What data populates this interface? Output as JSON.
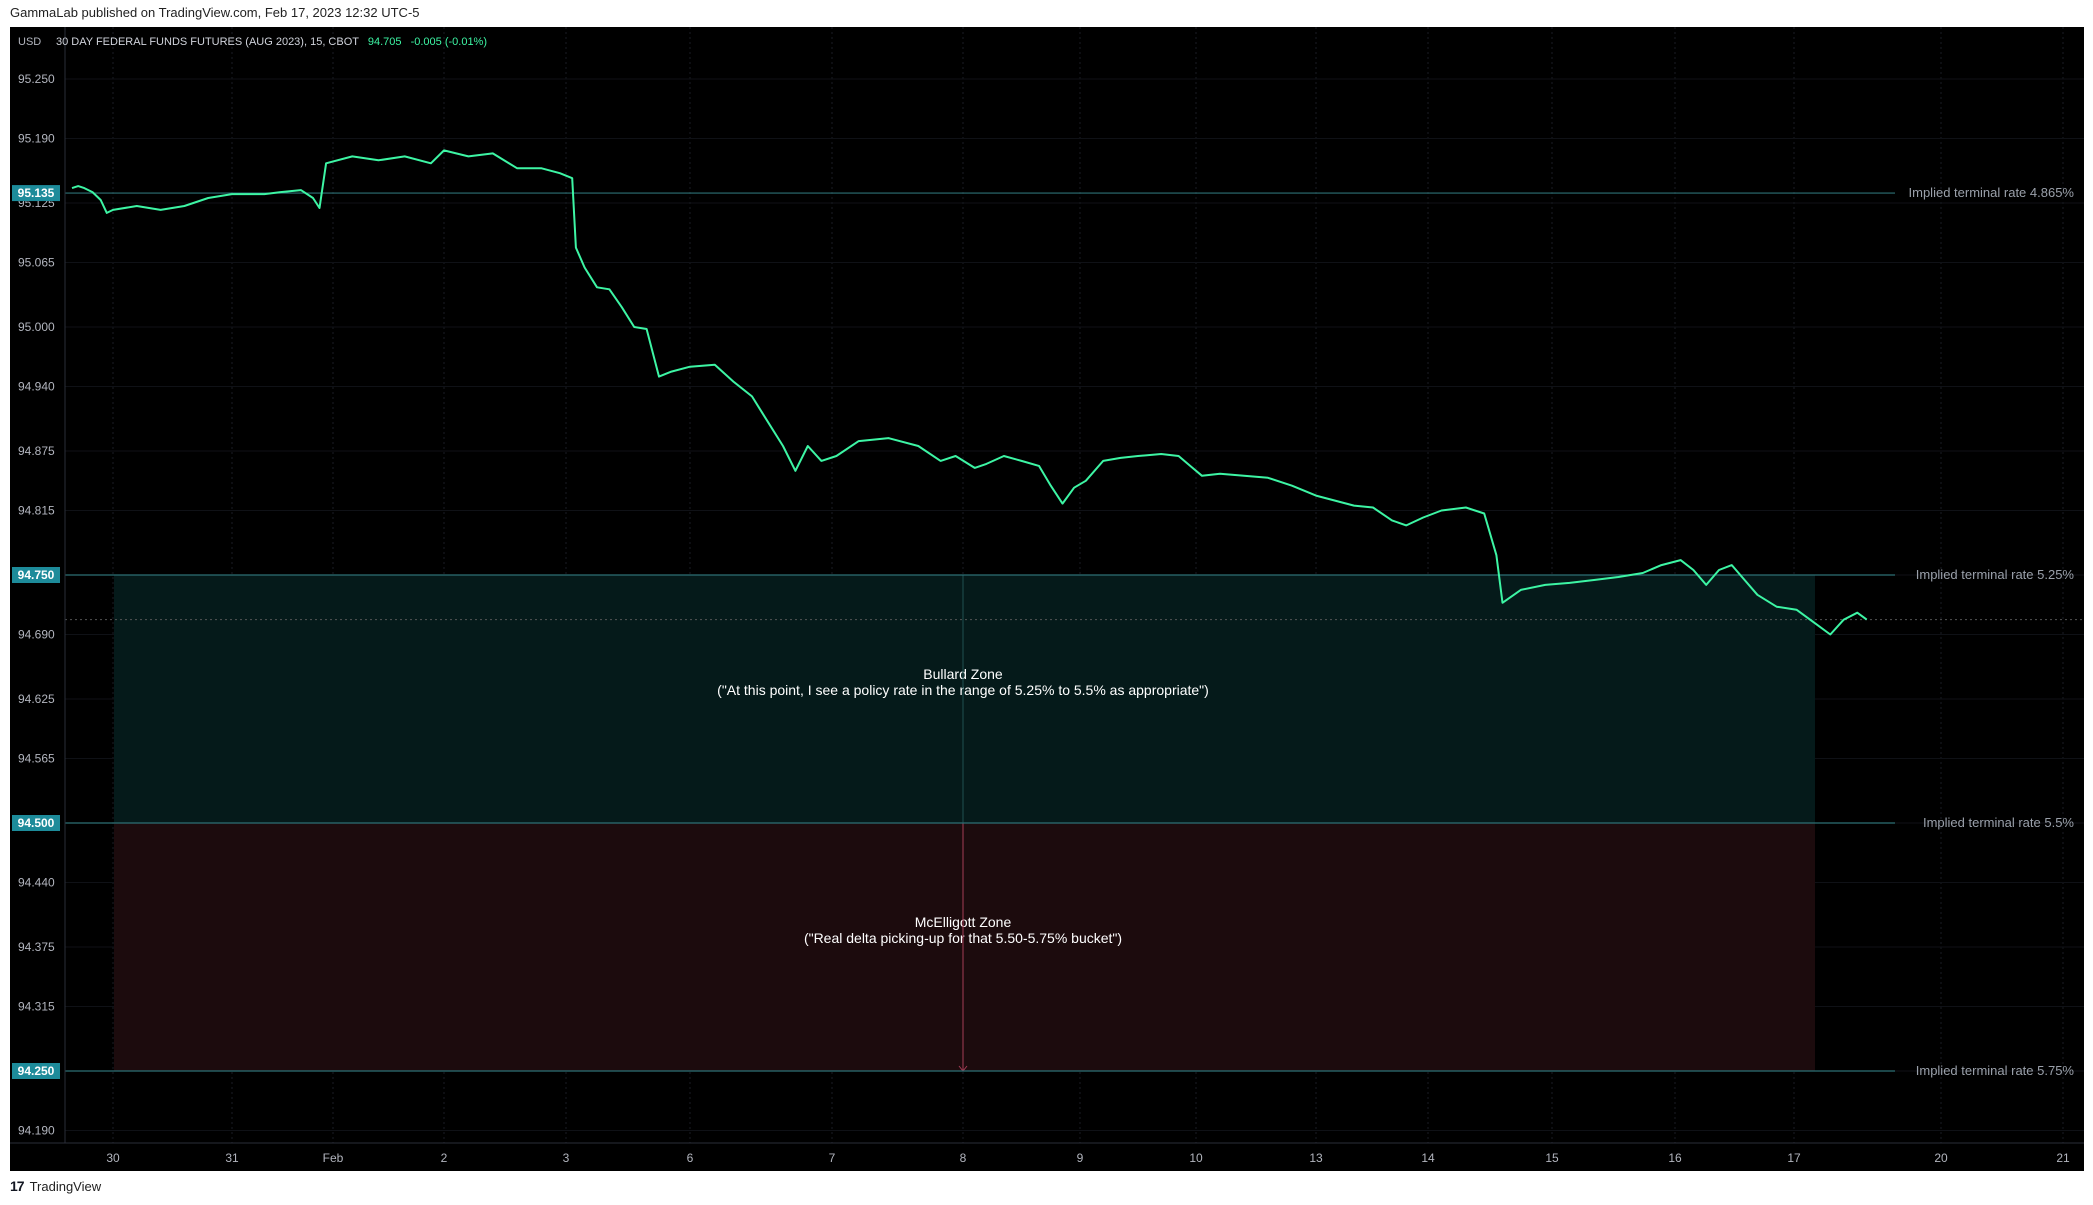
{
  "header": {
    "publisher": "GammaLab published on TradingView.com, Feb 17, 2023 12:32 UTC-5"
  },
  "footer": {
    "logo_text": "TradingView"
  },
  "chart_data": {
    "type": "line",
    "currency_label": "USD",
    "symbol": "30 DAY FEDERAL FUNDS FUTURES (AUG 2023), 15, CBOT",
    "last_price": "94.705",
    "change": "-0.005 (-0.01%)",
    "ylim": [
      94.16,
      95.28
    ],
    "y_ticks": [
      "95.250",
      "95.190",
      "95.125",
      "95.065",
      "95.000",
      "94.940",
      "94.875",
      "94.815",
      "94.750",
      "94.690",
      "94.625",
      "94.565",
      "94.500",
      "94.440",
      "94.375",
      "94.315",
      "94.250",
      "94.190"
    ],
    "x_ticks": [
      "30",
      "31",
      "Feb",
      "2",
      "3",
      "6",
      "7",
      "8",
      "9",
      "10",
      "13",
      "14",
      "15",
      "16",
      "17",
      "20",
      "21"
    ],
    "highlighted_prices": [
      "95.135",
      "94.750",
      "94.500",
      "94.250"
    ],
    "levels": [
      {
        "price": 95.135,
        "label": "Implied terminal rate 4.865%"
      },
      {
        "price": 94.75,
        "label": "Implied terminal rate 5.25%"
      },
      {
        "price": 94.5,
        "label": "Implied terminal rate 5.5%"
      },
      {
        "price": 94.25,
        "label": "Implied terminal rate 5.75%"
      }
    ],
    "zones": [
      {
        "name": "Bullard Zone",
        "quote": "(\"At this point, I see a policy rate in the range of 5.25% to 5.5% as appropriate\")",
        "top": 94.75,
        "bottom": 94.5,
        "fill": "#051a1a"
      },
      {
        "name": "McElligott Zone",
        "quote": "(\"Real delta picking-up for that 5.50-5.75% bucket\")",
        "top": 94.5,
        "bottom": 94.25,
        "fill": "#1c0b0d"
      }
    ],
    "series": [
      {
        "color": "#3df5a4",
        "points": [
          [
            0.0,
            95.14
          ],
          [
            0.15,
            95.142
          ],
          [
            0.3,
            95.14
          ],
          [
            0.5,
            95.136
          ],
          [
            0.7,
            95.128
          ],
          [
            0.85,
            95.115
          ],
          [
            1.0,
            95.118
          ],
          [
            1.2,
            95.122
          ],
          [
            1.4,
            95.118
          ],
          [
            1.6,
            95.122
          ],
          [
            1.8,
            95.13
          ],
          [
            2.0,
            95.134
          ],
          [
            2.2,
            95.134
          ],
          [
            2.4,
            95.134
          ],
          [
            2.6,
            95.136
          ],
          [
            2.85,
            95.138
          ],
          [
            3.0,
            95.13
          ],
          [
            3.05,
            95.12
          ],
          [
            3.1,
            95.165
          ],
          [
            3.3,
            95.172
          ],
          [
            3.5,
            95.168
          ],
          [
            3.7,
            95.172
          ],
          [
            3.9,
            95.165
          ],
          [
            4.0,
            95.178
          ],
          [
            4.2,
            95.172
          ],
          [
            4.4,
            95.175
          ],
          [
            4.6,
            95.16
          ],
          [
            4.8,
            95.16
          ],
          [
            4.95,
            95.155
          ],
          [
            5.05,
            95.15
          ],
          [
            5.08,
            95.08
          ],
          [
            5.15,
            95.06
          ],
          [
            5.25,
            95.04
          ],
          [
            5.35,
            95.038
          ],
          [
            5.45,
            95.02
          ],
          [
            5.55,
            95.0
          ],
          [
            5.65,
            94.998
          ],
          [
            5.75,
            94.95
          ],
          [
            5.85,
            94.955
          ],
          [
            6.0,
            94.96
          ],
          [
            6.2,
            94.962
          ],
          [
            6.35,
            94.945
          ],
          [
            6.5,
            94.93
          ],
          [
            6.6,
            94.91
          ],
          [
            6.75,
            94.88
          ],
          [
            6.85,
            94.855
          ],
          [
            6.95,
            94.88
          ],
          [
            7.05,
            94.865
          ],
          [
            7.15,
            94.87
          ],
          [
            7.3,
            94.885
          ],
          [
            7.5,
            94.888
          ],
          [
            7.7,
            94.88
          ],
          [
            7.85,
            94.865
          ],
          [
            7.95,
            94.87
          ],
          [
            8.1,
            94.858
          ],
          [
            8.2,
            94.862
          ],
          [
            8.35,
            94.87
          ],
          [
            8.5,
            94.865
          ],
          [
            8.65,
            94.86
          ],
          [
            8.75,
            94.84
          ],
          [
            8.85,
            94.822
          ],
          [
            8.95,
            94.838
          ],
          [
            9.05,
            94.845
          ],
          [
            9.2,
            94.865
          ],
          [
            9.35,
            94.868
          ],
          [
            9.5,
            94.87
          ],
          [
            9.7,
            94.872
          ],
          [
            9.85,
            94.87
          ],
          [
            9.95,
            94.86
          ],
          [
            10.05,
            94.85
          ],
          [
            10.2,
            94.852
          ],
          [
            10.4,
            94.85
          ],
          [
            10.6,
            94.848
          ],
          [
            10.8,
            94.84
          ],
          [
            11.0,
            94.83
          ],
          [
            11.2,
            94.825
          ],
          [
            11.4,
            94.82
          ],
          [
            11.6,
            94.818
          ],
          [
            11.8,
            94.805
          ],
          [
            11.95,
            94.8
          ],
          [
            12.1,
            94.808
          ],
          [
            12.25,
            94.815
          ],
          [
            12.45,
            94.818
          ],
          [
            12.6,
            94.812
          ],
          [
            12.7,
            94.77
          ],
          [
            12.75,
            94.722
          ],
          [
            12.9,
            94.735
          ],
          [
            13.1,
            94.74
          ],
          [
            13.3,
            94.742
          ],
          [
            13.5,
            94.745
          ],
          [
            13.7,
            94.748
          ],
          [
            13.9,
            94.752
          ],
          [
            14.05,
            94.76
          ],
          [
            14.2,
            94.765
          ],
          [
            14.3,
            94.755
          ],
          [
            14.4,
            94.74
          ],
          [
            14.5,
            94.755
          ],
          [
            14.6,
            94.76
          ],
          [
            14.7,
            94.745
          ],
          [
            14.8,
            94.73
          ],
          [
            14.95,
            94.718
          ],
          [
            15.1,
            94.715
          ],
          [
            15.25,
            94.7
          ],
          [
            15.35,
            94.69
          ],
          [
            15.45,
            94.705
          ],
          [
            15.55,
            94.712
          ],
          [
            15.62,
            94.705
          ]
        ]
      }
    ]
  }
}
